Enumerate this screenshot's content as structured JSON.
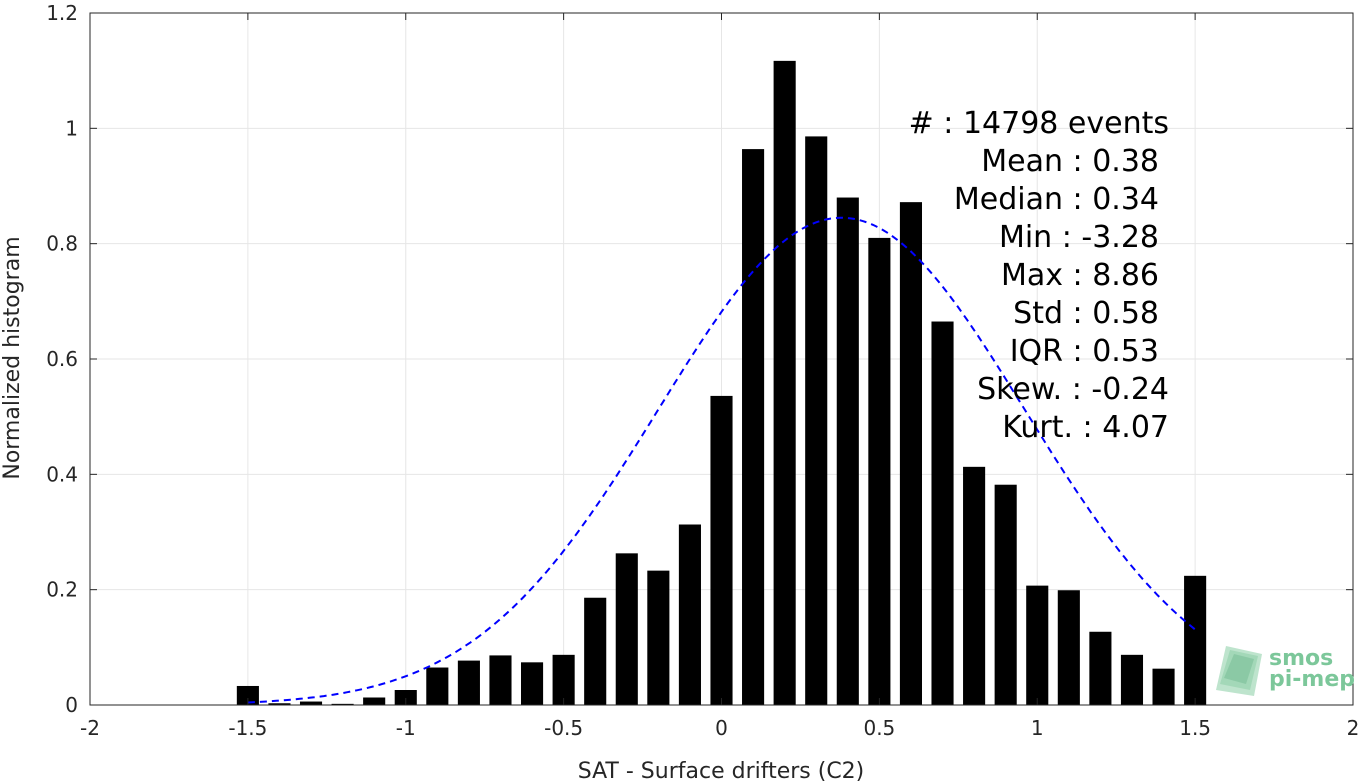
{
  "chart_data": {
    "type": "bar",
    "xlabel": "SAT - Surface drifters (C2)",
    "ylabel": "Normalized histogram",
    "xlim": [
      -2,
      2
    ],
    "ylim": [
      0,
      1.2
    ],
    "x_ticks": [
      -2,
      -1.5,
      -1,
      -0.5,
      0,
      0.5,
      1,
      1.5,
      2
    ],
    "x_tick_labels": [
      "-2",
      "-1.5",
      "-1",
      "-0.5",
      "0",
      "0.5",
      "1",
      "1.5",
      "2"
    ],
    "y_ticks": [
      0,
      0.2,
      0.4,
      0.6,
      0.8,
      1,
      1.2
    ],
    "y_tick_labels": [
      "0",
      "0.2",
      "0.4",
      "0.6",
      "0.8",
      "1",
      "1.2"
    ],
    "grid": true,
    "bar_width": 0.07,
    "x": [
      -1.5,
      -1.4,
      -1.3,
      -1.2,
      -1.1,
      -1.0,
      -0.9,
      -0.8,
      -0.7,
      -0.6,
      -0.5,
      -0.4,
      -0.3,
      -0.2,
      -0.1,
      0.0,
      0.1,
      0.2,
      0.3,
      0.4,
      0.5,
      0.6,
      0.7,
      0.8,
      0.9,
      1.0,
      1.1,
      1.2,
      1.3,
      1.4,
      1.5
    ],
    "values": [
      0.033,
      0.003,
      0.006,
      0.002,
      0.013,
      0.026,
      0.065,
      0.077,
      0.086,
      0.074,
      0.087,
      0.186,
      0.263,
      0.233,
      0.313,
      0.536,
      0.964,
      1.117,
      0.986,
      0.88,
      0.81,
      0.872,
      0.665,
      0.413,
      0.382,
      0.207,
      0.199,
      0.127,
      0.087,
      0.063,
      0.224
    ],
    "bar_color": "#000000",
    "fit": {
      "type": "normal",
      "mean": 0.38,
      "std": 0.58,
      "line_style": "dashed",
      "color": "#0000ff",
      "x_range": [
        -1.5,
        1.5
      ]
    },
    "annotations": [
      "#  : 14798 events",
      "Mean : 0.38",
      "Median : 0.34",
      "Min : -3.28",
      "Max : 8.86",
      "Std : 0.58",
      "IQR : 0.53",
      "Skew. : -0.24",
      "Kurt. : 4.07"
    ]
  },
  "logo": {
    "line1": "smos",
    "line2": "pi-mep",
    "color": "#7cc79a"
  }
}
